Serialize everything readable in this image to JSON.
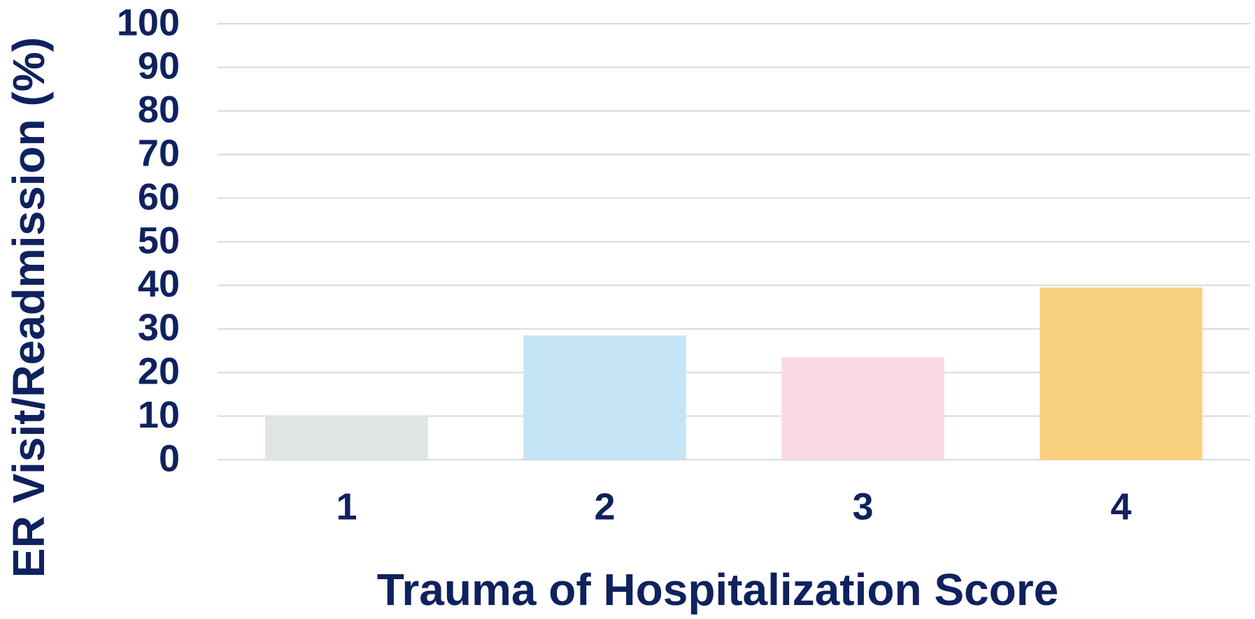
{
  "chart_data": {
    "type": "bar",
    "x_label": "Trauma of Hospitalization Score",
    "y_label": "ER Visit/Readmission (%)",
    "categories": [
      "1",
      "2",
      "3",
      "4"
    ],
    "values": [
      10,
      28.5,
      23.5,
      39.5
    ],
    "colors": [
      "#e0e4e3",
      "#c5e5f5",
      "#f9d9e2",
      "#f9d07e"
    ],
    "ylim": [
      0,
      100
    ],
    "yticks": [
      0,
      10,
      20,
      30,
      40,
      50,
      60,
      70,
      80,
      90,
      100
    ],
    "grid": true
  }
}
